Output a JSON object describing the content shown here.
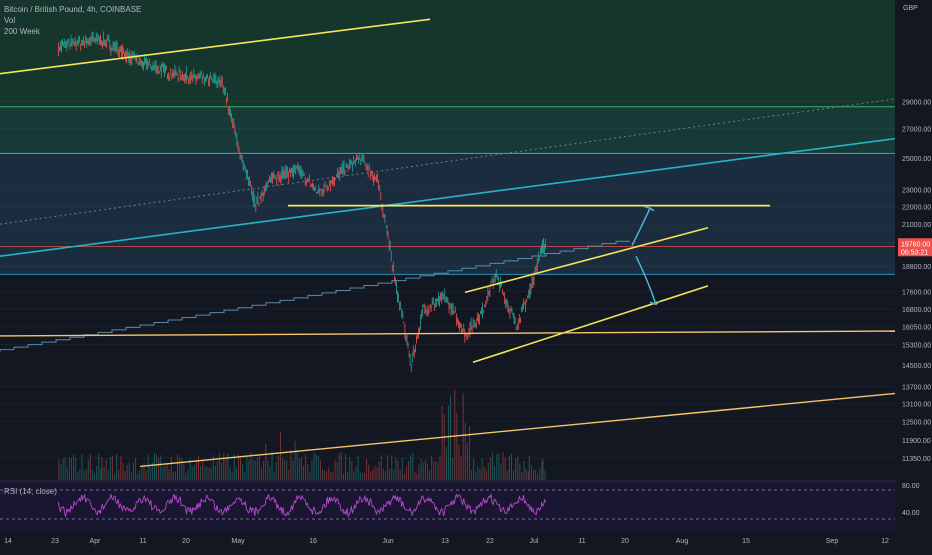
{
  "header": {
    "symbol_line": "Bitcoin / British Pound, 4h, COINBASE",
    "vol_label": "Vol",
    "ma_label": "200 Week",
    "currency": "GBP"
  },
  "rsi_label": "RSI (14, close)",
  "colors": {
    "background": "#131722",
    "up_candle": "#26a69a",
    "down_candle": "#ef5350",
    "yellow_line": "#f7e55a",
    "orange_line": "#f5c56b",
    "cyan_line": "#22b5c8",
    "arrow": "#4fb3d9",
    "rsi": "#b34bd0",
    "ma200w": "#3a5a6e",
    "band_dark_green": "#16362d",
    "band_teal": "#173a38",
    "band_blue": "#1b2c3e"
  },
  "chart_data": {
    "type": "candlestick",
    "title": "Bitcoin / British Pound, 4h, COINBASE",
    "ylabel": "GBP",
    "y_scale": "log",
    "ylim": [
      10700,
      34000
    ],
    "y_ticks": [
      "29000.00",
      "27000.00",
      "25000.00",
      "23000.00",
      "22000.00",
      "21000.00",
      "20000.00",
      "18800.00",
      "17600.00",
      "16800.00",
      "16050.00",
      "15300.00",
      "14500.00",
      "13700.00",
      "13100.00",
      "12500.00",
      "11900.00",
      "11350.00"
    ],
    "x_ticks": [
      "14",
      "23",
      "Apr",
      "11",
      "20",
      "May",
      "16",
      "Jun",
      "13",
      "22",
      "Jul",
      "11",
      "20",
      "Aug",
      "15",
      "Sep",
      "12"
    ],
    "price_label": "19760.00",
    "countdown_label": "06:53:21",
    "rsi_ticks": [
      "80.00",
      "40.00"
    ],
    "candles_note": "approximate 4h path",
    "price_path": [
      {
        "date": "2022-03-26",
        "price": 33500
      },
      {
        "date": "2022-04-05",
        "price": 34200
      },
      {
        "date": "2022-04-15",
        "price": 32000
      },
      {
        "date": "2022-04-25",
        "price": 31000
      },
      {
        "date": "2022-05-04",
        "price": 30500
      },
      {
        "date": "2022-05-06",
        "price": 28000
      },
      {
        "date": "2022-05-09",
        "price": 24500
      },
      {
        "date": "2022-05-12",
        "price": 22100
      },
      {
        "date": "2022-05-16",
        "price": 23800
      },
      {
        "date": "2022-05-22",
        "price": 24200
      },
      {
        "date": "2022-05-27",
        "price": 22800
      },
      {
        "date": "2022-06-01",
        "price": 24000
      },
      {
        "date": "2022-06-06",
        "price": 25000
      },
      {
        "date": "2022-06-10",
        "price": 23500
      },
      {
        "date": "2022-06-12",
        "price": 21000
      },
      {
        "date": "2022-06-14",
        "price": 18200
      },
      {
        "date": "2022-06-18",
        "price": 14500
      },
      {
        "date": "2022-06-21",
        "price": 16800
      },
      {
        "date": "2022-06-26",
        "price": 17300
      },
      {
        "date": "2022-07-01",
        "price": 15700
      },
      {
        "date": "2022-07-05",
        "price": 16700
      },
      {
        "date": "2022-07-08",
        "price": 18400
      },
      {
        "date": "2022-07-13",
        "price": 16100
      },
      {
        "date": "2022-07-16",
        "price": 17400
      },
      {
        "date": "2022-07-19",
        "price": 19700
      },
      {
        "date": "2022-07-20",
        "price": 19760
      }
    ]
  }
}
